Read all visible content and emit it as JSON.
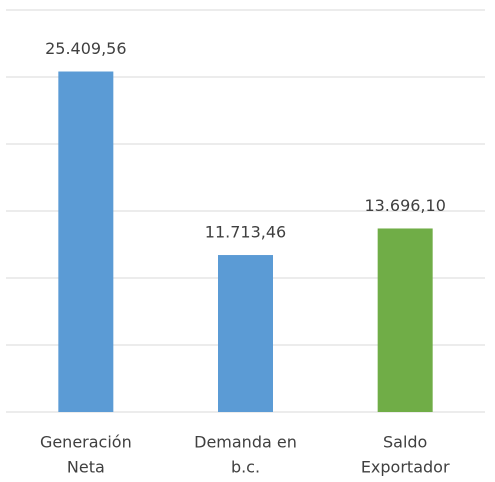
{
  "chart_data": {
    "type": "bar",
    "categories": [
      [
        "Generación",
        "Neta"
      ],
      [
        "Demanda en",
        "b.c."
      ],
      [
        "Saldo",
        "Exportador"
      ]
    ],
    "values": [
      25409.56,
      11713.46,
      13696.1
    ],
    "value_labels": [
      "25.409,56",
      "11.713,46",
      "13.696,10"
    ],
    "colors": [
      "#5b9bd5",
      "#5b9bd5",
      "#70ad47"
    ],
    "ylim": [
      0,
      30000
    ],
    "yticks": [
      0,
      5000,
      10000,
      15000,
      20000,
      25000,
      30000
    ],
    "grid": true
  }
}
